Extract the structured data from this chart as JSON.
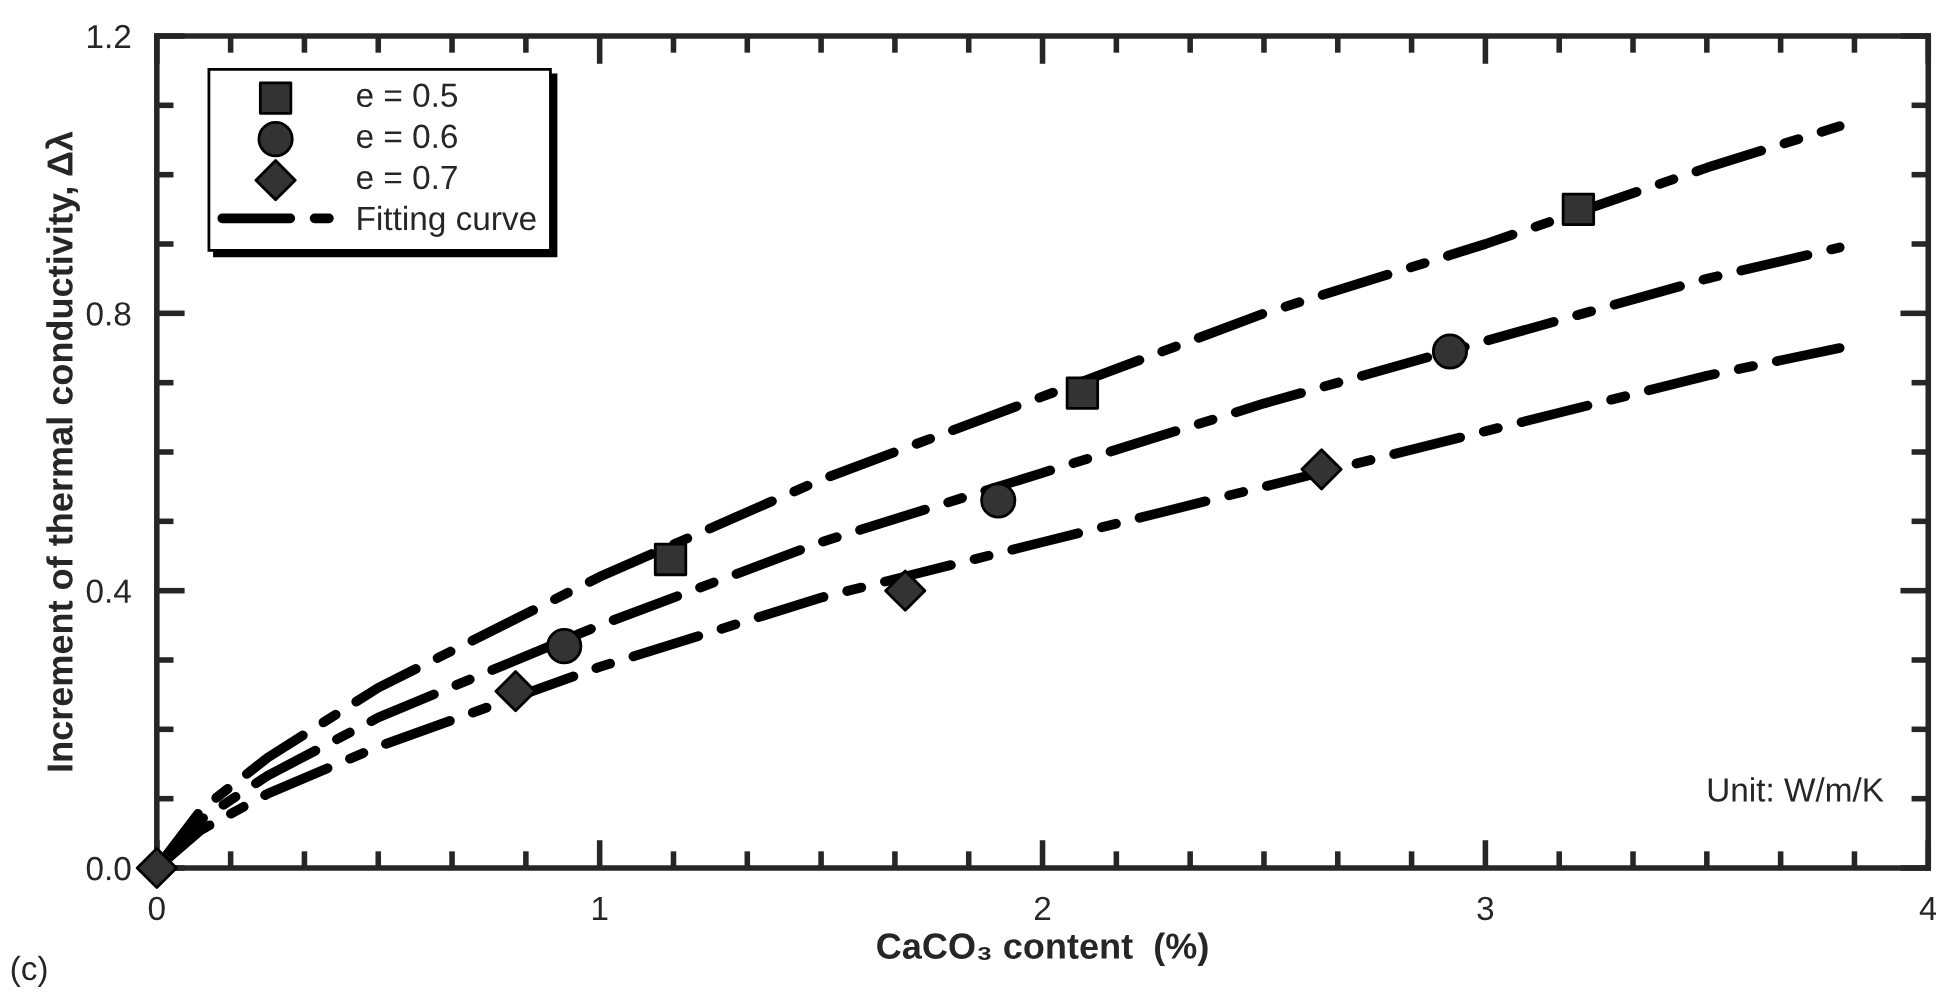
{
  "chart_data": {
    "type": "scatter",
    "xlabel": "CaCO₃ content  (%)",
    "ylabel": "Increment of thermal conductivity, Δλ",
    "xlim": [
      0,
      4
    ],
    "xticks": [
      0,
      1,
      2,
      3,
      4
    ],
    "ylim": [
      0,
      1.2
    ],
    "yticks": [
      {
        "value": 0,
        "label": "0.0"
      },
      {
        "value": 0.4,
        "label": "0.4"
      },
      {
        "value": 0.8,
        "label": "0.8"
      },
      {
        "value": 1.2,
        "label": "1.2"
      }
    ],
    "grid": false,
    "legend": "top left",
    "annotations": [
      "Unit: W/m/K",
      "(c)"
    ],
    "series": [
      {
        "name": "e = 0.5",
        "marker": "square",
        "color": "#333333",
        "x": [
          1.16,
          2.09,
          3.21
        ],
        "values": [
          0.445,
          0.685,
          0.95
        ]
      },
      {
        "name": "e = 0.6",
        "marker": "circle",
        "color": "#333333",
        "x": [
          0.92,
          1.9,
          2.92
        ],
        "values": [
          0.32,
          0.53,
          0.745
        ]
      },
      {
        "name": "e = 0.7",
        "marker": "diamond",
        "color": "#333333",
        "x": [
          0,
          0.81,
          1.69,
          2.63
        ],
        "values": [
          0,
          0.255,
          0.4,
          0.575
        ]
      },
      {
        "name": "Fitting curve",
        "type": "line",
        "line_style": "dashdot",
        "color": "#000000",
        "x": [
          0,
          0.1,
          0.25,
          0.5,
          1,
          1.5,
          2,
          2.5,
          3,
          3.5,
          3.8
        ],
        "values": [
          0,
          0.084,
          0.159,
          0.26,
          0.42,
          0.56,
          0.68,
          0.8,
          0.9,
          1.01,
          1.07
        ]
      },
      {
        "type": "line",
        "line_style": "dashdot",
        "color": "#000000",
        "x": [
          0,
          0.1,
          0.25,
          0.5,
          1,
          1.5,
          2,
          2.5,
          3,
          3.5,
          3.8
        ],
        "values": [
          0,
          0.07,
          0.133,
          0.217,
          0.35,
          0.47,
          0.57,
          0.67,
          0.76,
          0.85,
          0.895
        ]
      },
      {
        "type": "line",
        "line_style": "dashdot",
        "color": "#000000",
        "x": [
          0,
          0.1,
          0.25,
          0.5,
          1,
          1.5,
          2,
          2.5,
          3,
          3.5,
          3.8
        ],
        "values": [
          0,
          0.055,
          0.107,
          0.175,
          0.29,
          0.39,
          0.47,
          0.55,
          0.63,
          0.71,
          0.75
        ]
      }
    ]
  }
}
